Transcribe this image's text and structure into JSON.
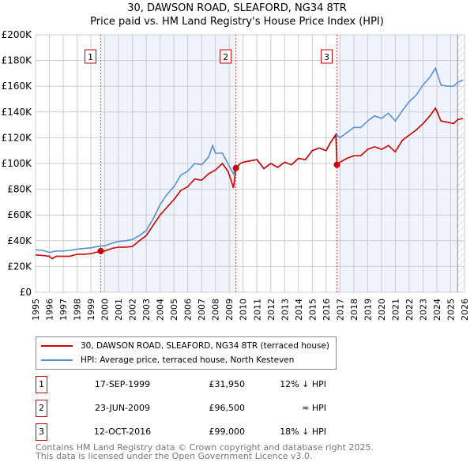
{
  "chart_data": {
    "type": "line",
    "title": "30, DAWSON ROAD, SLEAFORD, NG34 8TR",
    "subtitle": "Price paid vs. HM Land Registry's House Price Index (HPI)",
    "xlim": [
      1995,
      2026
    ],
    "ylim": [
      0,
      200000
    ],
    "y_ticks": [
      0,
      20000,
      40000,
      60000,
      80000,
      100000,
      120000,
      140000,
      160000,
      180000,
      200000
    ],
    "y_tick_labels": [
      "£0",
      "£20K",
      "£40K",
      "£60K",
      "£80K",
      "£100K",
      "£120K",
      "£140K",
      "£160K",
      "£180K",
      "£200K"
    ],
    "x_ticks": [
      1995,
      1996,
      1997,
      1998,
      1999,
      2000,
      2001,
      2002,
      2003,
      2004,
      2005,
      2006,
      2007,
      2008,
      2009,
      2010,
      2011,
      2012,
      2013,
      2014,
      2015,
      2016,
      2017,
      2018,
      2019,
      2020,
      2021,
      2022,
      2023,
      2024,
      2025,
      2026
    ],
    "grid": true,
    "series": [
      {
        "name": "30, DAWSON ROAD, SLEAFORD, NG34 8TR (terraced house)",
        "color": "#cc0000",
        "x": [
          1995,
          1995.5,
          1996,
          1996.2,
          1996.5,
          1997,
          1997.5,
          1998,
          1998.5,
          1999,
          1999.71,
          2000,
          2000.5,
          2001,
          2001.5,
          2002,
          2002.5,
          2003,
          2003.5,
          2004,
          2004.5,
          2005,
          2005.5,
          2006,
          2006.5,
          2007,
          2007.5,
          2008,
          2008.5,
          2008.9,
          2009.1,
          2009.3,
          2009.48,
          2009.8,
          2010,
          2010.5,
          2011,
          2011.5,
          2012,
          2012.5,
          2013,
          2013.5,
          2014,
          2014.5,
          2015,
          2015.5,
          2016,
          2016.3,
          2016.7,
          2016.78,
          2017,
          2017.5,
          2018,
          2018.5,
          2019,
          2019.5,
          2020,
          2020.5,
          2021,
          2021.5,
          2022,
          2022.5,
          2023,
          2023.5,
          2023.9,
          2024.3,
          2024.8,
          2025.2,
          2025.5,
          2025.9
        ],
        "y": [
          29000,
          28500,
          28000,
          26000,
          28000,
          28000,
          28000,
          29500,
          29500,
          30000,
          31950,
          32000,
          34000,
          35000,
          35000,
          35500,
          40000,
          44000,
          52000,
          60000,
          66000,
          72000,
          79000,
          82000,
          88000,
          87000,
          92000,
          95000,
          100000,
          94000,
          88000,
          81000,
          96500,
          100000,
          101000,
          102000,
          103000,
          96000,
          100000,
          97000,
          101000,
          99000,
          104000,
          103000,
          110000,
          112000,
          110000,
          116000,
          122000,
          99000,
          101000,
          104000,
          106000,
          106000,
          111000,
          113000,
          111000,
          114000,
          109000,
          118000,
          122000,
          126000,
          131000,
          137000,
          143000,
          133000,
          132000,
          131000,
          134000,
          135000
        ]
      },
      {
        "name": "HPI: Average price, terraced house, North Kesteven",
        "color": "#5b8fd0",
        "x": [
          1995,
          1995.5,
          1996,
          1996.5,
          1997,
          1997.5,
          1998,
          1998.5,
          1999,
          1999.71,
          2000,
          2000.5,
          2001,
          2001.5,
          2002,
          2002.5,
          2003,
          2003.5,
          2004,
          2004.5,
          2005,
          2005.5,
          2006,
          2006.5,
          2007,
          2007.5,
          2008,
          2007.8,
          2008.5,
          2008.9,
          2009.3,
          2009.48,
          2009.8,
          2010,
          2010.5,
          2011,
          2011.5,
          2012,
          2012.5,
          2013,
          2013.5,
          2014,
          2014.5,
          2015,
          2015.5,
          2016,
          2016.3,
          2016.7,
          2017,
          2017.5,
          2018,
          2018.5,
          2019,
          2019.5,
          2020,
          2020.5,
          2021,
          2021.5,
          2022,
          2022.5,
          2023,
          2023.5,
          2023.9,
          2024.3,
          2024.8,
          2025.2,
          2025.5,
          2025.9
        ],
        "y": [
          33000,
          32500,
          31000,
          32000,
          32000,
          32500,
          33500,
          34000,
          34500,
          36000,
          36000,
          38000,
          39500,
          40000,
          41000,
          44000,
          48000,
          57000,
          68000,
          76000,
          82000,
          91000,
          94000,
          100000,
          99000,
          105000,
          108000,
          114000,
          108000,
          100000,
          92000,
          97000,
          100000,
          101000,
          102000,
          103000,
          96000,
          100000,
          97000,
          101000,
          99000,
          104000,
          103000,
          110000,
          112000,
          110000,
          116000,
          123000,
          120000,
          124000,
          128000,
          128000,
          133000,
          137000,
          135000,
          139000,
          133000,
          141000,
          148000,
          153000,
          161000,
          167000,
          174000,
          161000,
          160000,
          160000,
          163000,
          165000
        ]
      }
    ],
    "sales": [
      {
        "label": "1",
        "x": 1999.71,
        "y": 31950
      },
      {
        "label": "2",
        "x": 2009.48,
        "y": 96500
      },
      {
        "label": "3",
        "x": 2016.78,
        "y": 99000
      }
    ],
    "legend_placement": "below"
  },
  "table": [
    {
      "num": "1",
      "date": "17-SEP-1999",
      "price": "£31,950",
      "hpi": "12% ↓ HPI"
    },
    {
      "num": "2",
      "date": "23-JUN-2009",
      "price": "£96,500",
      "hpi": "≈ HPI"
    },
    {
      "num": "3",
      "date": "12-OCT-2016",
      "price": "£99,000",
      "hpi": "18% ↓ HPI"
    }
  ],
  "footer": {
    "line1": "Contains HM Land Registry data © Crown copyright and database right 2025.",
    "line2": "This data is licensed under the Open Government Licence v3.0."
  }
}
